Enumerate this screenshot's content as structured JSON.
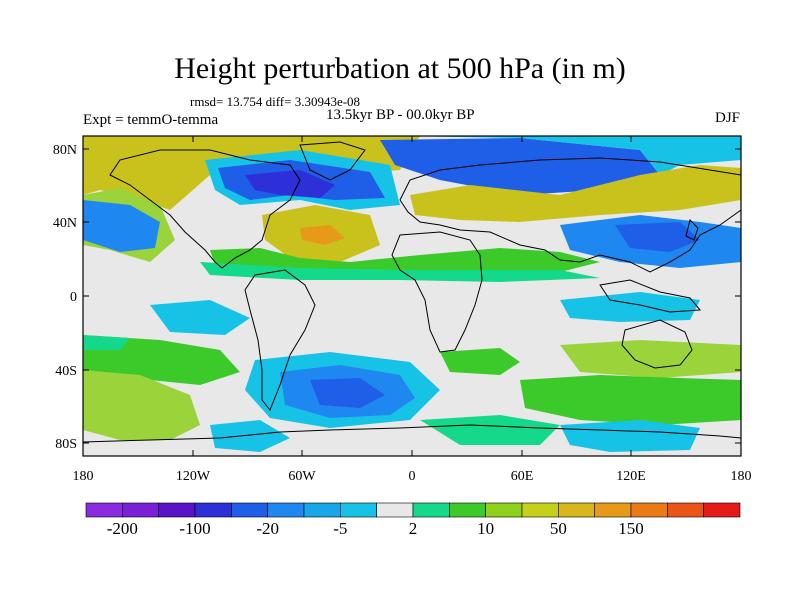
{
  "title": "Height perturbation at 500 hPa (in m)",
  "rmsd_text": "rmsd= 13.754 diff= 3.30943e-08",
  "experiment_text": "Expt = temmO-temma",
  "period_text": "13.5kyr BP - 00.0kyr BP",
  "season": "DJF",
  "lat_ticks": [
    "80N",
    "40N",
    "0",
    "40S",
    "80S"
  ],
  "lon_ticks": [
    "180",
    "120W",
    "60W",
    "0",
    "60E",
    "120E",
    "180"
  ],
  "colorbar": {
    "colors": [
      "#8a2be2",
      "#7b1fd6",
      "#5a14c8",
      "#2d2fd9",
      "#1f5ee6",
      "#1e88f0",
      "#17a6e9",
      "#16c3e6",
      "#e8e8e8",
      "#14d88a",
      "#3cc92a",
      "#8fd21e",
      "#c4d01c",
      "#d8b61c",
      "#e69a18",
      "#ea7a16",
      "#ea5417",
      "#e41b17"
    ],
    "labels": [
      "-200",
      "-100",
      "-20",
      "-5",
      "2",
      "10",
      "50",
      "150"
    ]
  },
  "palette": {
    "white": "#e8e8e8",
    "yellow": "#c9c21d",
    "lightgreen": "#9bd33a",
    "green": "#3cc92a",
    "teal": "#14d88a",
    "lightblue": "#16c3e6",
    "skyblue": "#1e88f0",
    "blue": "#1f5ee6",
    "darkblue": "#2d2fd9",
    "orange": "#e69a18"
  }
}
